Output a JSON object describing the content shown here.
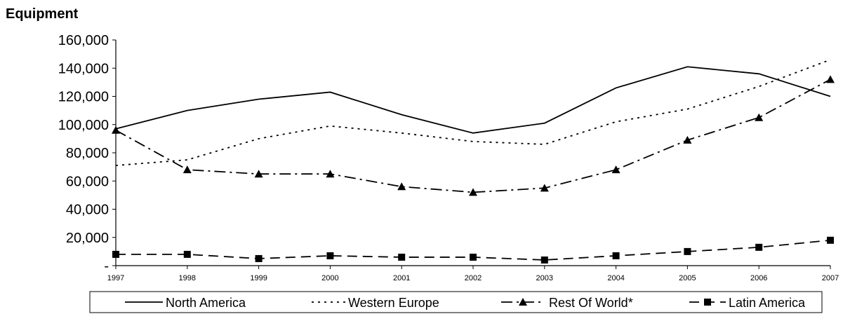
{
  "chart_data": {
    "type": "line",
    "title": "Equipment",
    "xlabel": "",
    "ylabel": "",
    "x": [
      "1997",
      "1998",
      "1999",
      "2000",
      "2001",
      "2002",
      "2003",
      "2004",
      "2005",
      "2006",
      "2007"
    ],
    "ylim": [
      0,
      160000
    ],
    "y_ticks": [
      {
        "value": 0,
        "label": "-"
      },
      {
        "value": 20000,
        "label": "20,000"
      },
      {
        "value": 40000,
        "label": "40,000"
      },
      {
        "value": 60000,
        "label": "60,000"
      },
      {
        "value": 80000,
        "label": "80,000"
      },
      {
        "value": 100000,
        "label": "100,000"
      },
      {
        "value": 120000,
        "label": "120,000"
      },
      {
        "value": 140000,
        "label": "140,000"
      },
      {
        "value": 160000,
        "label": "160,000"
      }
    ],
    "legend_position": "bottom",
    "series": [
      {
        "name": "North America",
        "style": "solid",
        "marker": "none",
        "color": "#000000",
        "values": [
          97000,
          110000,
          118000,
          123000,
          107000,
          94000,
          101000,
          126000,
          141000,
          136000,
          120000
        ]
      },
      {
        "name": "Western Europe",
        "style": "dotted",
        "marker": "none",
        "color": "#000000",
        "values": [
          71000,
          75000,
          90000,
          99000,
          94000,
          88000,
          86000,
          102000,
          111000,
          127000,
          146000
        ]
      },
      {
        "name": "Rest Of World*",
        "style": "dashdot",
        "marker": "triangle",
        "color": "#000000",
        "values": [
          96000,
          68000,
          65000,
          65000,
          56000,
          52000,
          55000,
          68000,
          89000,
          105000,
          132000
        ]
      },
      {
        "name": "Latin America",
        "style": "dashed",
        "marker": "square",
        "color": "#000000",
        "values": [
          8000,
          8000,
          5000,
          7000,
          6000,
          6000,
          4000,
          7000,
          10000,
          13000,
          18000
        ]
      }
    ]
  }
}
